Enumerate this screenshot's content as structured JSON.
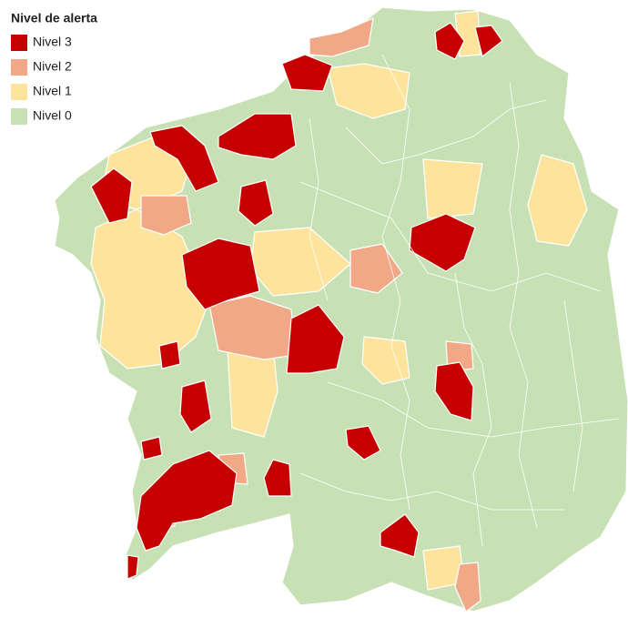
{
  "legend": {
    "title": "Nivel de alerta",
    "items": [
      {
        "label": "Nivel 3",
        "color": "#c60000"
      },
      {
        "label": "Nivel 2",
        "color": "#f1a887"
      },
      {
        "label": "Nivel 1",
        "color": "#fde39b"
      },
      {
        "label": "Nivel 0",
        "color": "#c7e1b5"
      }
    ]
  }
}
